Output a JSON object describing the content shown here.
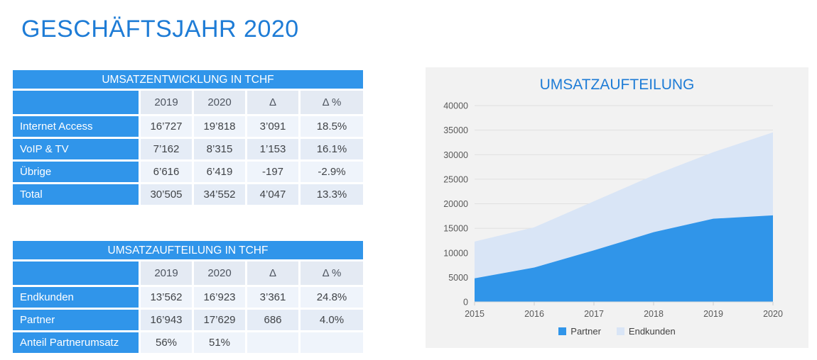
{
  "slide": {
    "title": "GESCHÄFTSJAHR 2020"
  },
  "colors": {
    "accent_blue": "#3095ea",
    "title_blue": "#1e7cd6",
    "panel_gray": "#f2f2f2",
    "partner_area": "#3095e9",
    "endkunden_area": "#d9e5f6"
  },
  "table1": {
    "title": "UMSATZENTWICKLUNG IN TCHF",
    "columns": [
      "",
      "2019",
      "2020",
      "Δ",
      "Δ %"
    ],
    "rows": [
      {
        "label": "Internet Access",
        "values": [
          "16’727",
          "19’818",
          "3’091",
          "18.5%"
        ]
      },
      {
        "label": "VoIP & TV",
        "values": [
          "7’162",
          "8’315",
          "1’153",
          "16.1%"
        ]
      },
      {
        "label": "Übrige",
        "values": [
          "6’616",
          "6’419",
          "-197",
          "-2.9%"
        ]
      },
      {
        "label": "Total",
        "values": [
          "30’505",
          "34’552",
          "4’047",
          "13.3%"
        ]
      }
    ]
  },
  "table2": {
    "title": "UMSATZAUFTEILUNG IN TCHF",
    "columns": [
      "",
      "2019",
      "2020",
      "Δ",
      "Δ %"
    ],
    "rows": [
      {
        "label": "Endkunden",
        "values": [
          "13’562",
          "16’923",
          "3’361",
          "24.8%"
        ]
      },
      {
        "label": "Partner",
        "values": [
          "16’943",
          "17’629",
          "686",
          "4.0%"
        ]
      },
      {
        "label": "Anteil Partnerumsatz",
        "values": [
          "56%",
          "51%",
          "",
          ""
        ]
      }
    ]
  },
  "chart_data": {
    "type": "area",
    "stacked": true,
    "title": "UMSATZAUFTEILUNG",
    "x": [
      "2015",
      "2016",
      "2017",
      "2018",
      "2019",
      "2020"
    ],
    "series": [
      {
        "name": "Partner",
        "color": "#3095e9",
        "values": [
          4800,
          7000,
          10500,
          14200,
          16943,
          17629
        ]
      },
      {
        "name": "Endkunden",
        "color": "#d9e5f6",
        "values": [
          7500,
          8200,
          10000,
          11600,
          13562,
          16923
        ]
      }
    ],
    "ylim": [
      0,
      40000
    ],
    "ytick_step": 5000,
    "grid": true,
    "legend_position": "bottom"
  }
}
